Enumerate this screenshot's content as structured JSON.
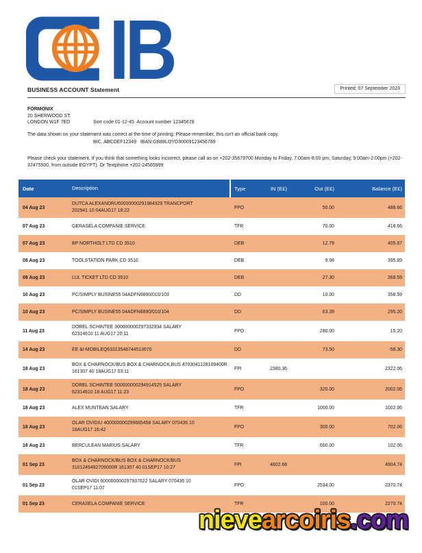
{
  "logo": {
    "letters": "IB",
    "blue": "#1d57a6",
    "orange": "#ee7d22"
  },
  "header": {
    "title": "BUSINESS ACCOUNT Statement",
    "printed": "Printed: 07 September 2023"
  },
  "account": {
    "name": "FORMONIX",
    "address_line1": "20 SHERWOOD ST.",
    "address_line2": "LONDON W1F 7ED",
    "sort_code_line": "Sort code 01-12-45  Account number 12345678",
    "bic_iban_line": "BIC. ABCDEF12349   IBAN:GB88LOYD30009123456789"
  },
  "notices": {
    "correctness": "The data shown on your statement was correct at the time of printing. Please remember, this isn't an official bank copy.",
    "check": "Please check your statement. If you think that something looks incorrect, please call as on +202-35679700 Monday to Friday, 7:00am-8:00 pm; Saturday, 9:00am-2:00pm (+202-37475500, from outside EGYPT). Or Textphone +202-24565999"
  },
  "table": {
    "header_color": "#1f5ea9",
    "row_highlight_color": "#f4b183",
    "headers": [
      "Date",
      "Description",
      "Type",
      "IN (E£)",
      "Out (E£)",
      "Balance (E£)"
    ],
    "rows": [
      {
        "date": "04 Aug 23",
        "desc1": "DUTCA ALEXANDRU60000000291984329 TRANCPORT",
        "desc2": "202941 10 04AUG17 18:22",
        "type": "FPO",
        "in": "",
        "out": "50.00",
        "balance": "488.66"
      },
      {
        "date": "07 Aug 23",
        "desc1": "GERASELA COMPANIE SERVICE",
        "desc2": "",
        "type": "TFR",
        "in": "",
        "out": "70.00",
        "balance": "418.66"
      },
      {
        "date": "07 Aug 23",
        "desc1": "BP NORTHOLT LTD CD 3510",
        "desc2": "",
        "type": "DEB",
        "in": "",
        "out": "12.79",
        "balance": "405.87"
      },
      {
        "date": "08 Aug 23",
        "desc1": "TOOLSTATION PARK CD 3510",
        "desc2": "",
        "type": "DEB",
        "in": "",
        "out": "9.98",
        "balance": "395.89"
      },
      {
        "date": "08 Aug 23",
        "desc1": "LUL TICKET LTD CD 3510",
        "desc2": "",
        "type": "DEB",
        "in": "",
        "out": "27.30",
        "balance": "368.59"
      },
      {
        "date": "10 Aug 23",
        "desc1": "PC/SIMPLY BUSINE55 04ADFN6890/010/103",
        "desc2": "",
        "type": "DD",
        "in": "",
        "out": "10.00",
        "balance": "358.59"
      },
      {
        "date": "10 Aug 23",
        "desc1": "PC/SIMPLY BUSINE55 04ADFN6890/010/104",
        "desc2": "",
        "type": "DD",
        "in": "",
        "out": "63.39",
        "balance": "295.20"
      },
      {
        "date": "11 Aug 23",
        "desc1": "DOREL SCHINTEE 300000000297332934 SALARY",
        "desc2": "62314610 11 AUG17 20:11",
        "type": "FPO",
        "in": "",
        "out": "280.00",
        "balance": "15.20"
      },
      {
        "date": "14 Aug 23",
        "desc1": "EE &I-MOBILEQ63313548744513670",
        "desc2": "",
        "type": "DD",
        "in": "",
        "out": "73.50",
        "balance": "-58.30"
      },
      {
        "date": "18 Aug 23",
        "desc1": "BOX & CHARNOCK/BUS BOX & CHARNOCK,BUS 4703041128109400R",
        "desc2": "161307 40 18AUG17 03:11",
        "type": "FPI",
        "in": "2380.36",
        "out": "",
        "balance": "2322.06"
      },
      {
        "date": "18 Aug 23",
        "desc1": "DOREL SCHINTEE 500000000294914525 SALARY",
        "desc2": "62314610 18 AUG17 11:23",
        "type": "FPO",
        "in": "",
        "out": "320.00",
        "balance": "2002.06"
      },
      {
        "date": "18 Aug 23",
        "desc1": "ALEX MUNTEAN SALARY",
        "desc2": "",
        "type": "TFR",
        "in": "",
        "out": "1000.00",
        "balance": "1002.06"
      },
      {
        "date": "18 Aug 23",
        "desc1": "OLAR OVIDIU 400000000299685458 SALARY 070436 10",
        "desc2": "18AUG17 16:42",
        "type": "FPO",
        "in": "",
        "out": "300.00",
        "balance": "702.06"
      },
      {
        "date": "18 Aug 23",
        "desc1": "BERCULEAN MARIUS SALARY",
        "desc2": "",
        "type": "TFR",
        "in": "",
        "out": "600.00",
        "balance": "102.06"
      },
      {
        "date": "01 Sep 23",
        "desc1": "BOX & CHARNOCK/BUS BOX & CHARNOCK/BUS",
        "desc2": "3101249492709000R 161307 40 01SEP17 10:27",
        "type": "FPI",
        "in": "4802.68",
        "out": "",
        "balance": "4904.74"
      },
      {
        "date": "01 Sep 23",
        "desc1": "OLAR OVIDI 600000000297937622 SALARY 070436 10",
        "desc2": "01SEP17 11:07",
        "type": "FPO",
        "in": "",
        "out": "2534.00",
        "balance": "2370.74"
      },
      {
        "date": "01 Sep 23",
        "desc1": "CERASELA COMPANIE SERVICE",
        "desc2": "",
        "type": "TFR",
        "in": "",
        "out": "100.00",
        "balance": "2270.74"
      }
    ]
  },
  "watermark": {
    "segments": [
      {
        "text": "nieve",
        "color": "#f2e30c"
      },
      {
        "text": "arcoiris",
        "color": "#f08419"
      },
      {
        "text": ".com",
        "color": "#61209d"
      }
    ]
  }
}
